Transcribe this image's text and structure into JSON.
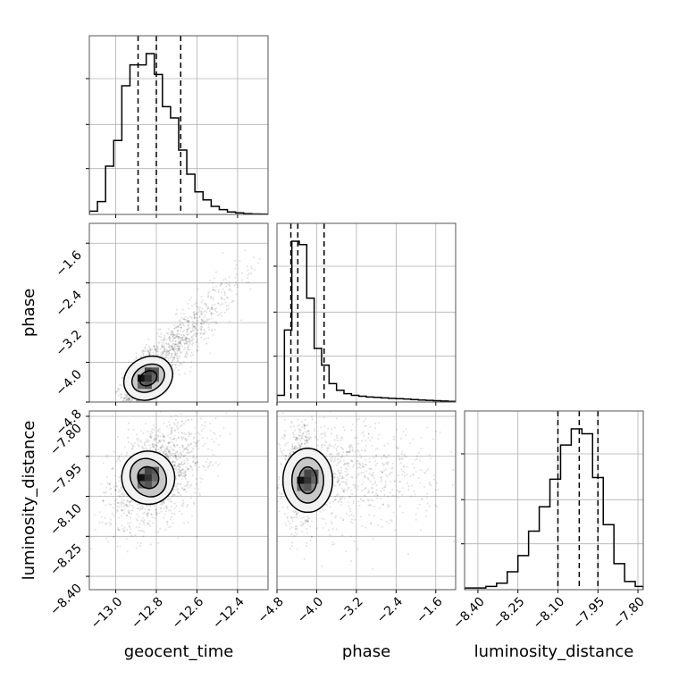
{
  "chart_data": {
    "type": "corner",
    "grid": true,
    "parameters": [
      "geocent_time",
      "phase",
      "luminosity_distance"
    ],
    "ranges": {
      "geocent_time": [
        -13.13,
        -12.25
      ],
      "phase": [
        -4.8,
        -1.2
      ],
      "luminosity_distance": [
        -8.45,
        -7.78
      ]
    },
    "ticks": {
      "geocent_time": [
        -13.0,
        -12.8,
        -12.6,
        -12.4
      ],
      "phase": [
        -4.8,
        -4.0,
        -3.2,
        -2.4,
        -1.6
      ],
      "luminosity_distance": [
        -8.4,
        -8.25,
        -8.1,
        -7.95,
        -7.8
      ]
    },
    "tick_labels": {
      "geocent_time": [
        "−13.0",
        "−12.8",
        "−12.6",
        "−12.4"
      ],
      "phase": [
        "−4.8",
        "−4.0",
        "−3.2",
        "−2.4",
        "−1.6"
      ],
      "luminosity_distance": [
        "−8.40",
        "−8.25",
        "−8.10",
        "−7.95",
        "−7.80"
      ]
    },
    "quantile_lines": {
      "geocent_time": [
        -12.89,
        -12.8,
        -12.68
      ],
      "phase": [
        -4.52,
        -4.38,
        -3.85
      ],
      "luminosity_distance": [
        -8.1,
        -8.02,
        -7.95
      ]
    },
    "histograms": {
      "geocent_time": {
        "edges": [
          -13.13,
          -13.09,
          -13.05,
          -13.01,
          -12.97,
          -12.93,
          -12.89,
          -12.85,
          -12.81,
          -12.77,
          -12.73,
          -12.69,
          -12.65,
          -12.61,
          -12.57,
          -12.53,
          -12.49,
          -12.45,
          -12.41,
          -12.37,
          -12.33,
          -12.29,
          -12.25
        ],
        "counts": [
          0.02,
          0.08,
          0.3,
          0.46,
          0.8,
          0.93,
          0.93,
          1.0,
          0.87,
          0.67,
          0.6,
          0.4,
          0.25,
          0.14,
          0.09,
          0.05,
          0.03,
          0.015,
          0.01,
          0.005,
          0.003,
          0.002
        ]
      },
      "phase": {
        "edges": [
          -4.8,
          -4.65,
          -4.5,
          -4.35,
          -4.2,
          -4.05,
          -3.9,
          -3.75,
          -3.6,
          -3.45,
          -3.3,
          -3.15,
          -3.0,
          -2.85,
          -2.7,
          -2.55,
          -2.4,
          -2.25,
          -2.1,
          -1.95,
          -1.8,
          -1.65,
          -1.5,
          -1.35,
          -1.2
        ],
        "counts": [
          0.04,
          0.43,
          0.96,
          0.94,
          0.62,
          0.32,
          0.22,
          0.11,
          0.07,
          0.05,
          0.04,
          0.035,
          0.03,
          0.028,
          0.025,
          0.022,
          0.02,
          0.018,
          0.015,
          0.012,
          0.01,
          0.008,
          0.006,
          0.004
        ]
      },
      "luminosity_distance": {
        "edges": [
          -8.45,
          -8.41,
          -8.37,
          -8.33,
          -8.29,
          -8.25,
          -8.21,
          -8.17,
          -8.13,
          -8.09,
          -8.05,
          -8.01,
          -7.97,
          -7.93,
          -7.89,
          -7.85,
          -7.81,
          -7.78
        ],
        "counts": [
          0.01,
          0.01,
          0.02,
          0.04,
          0.11,
          0.21,
          0.36,
          0.51,
          0.68,
          0.89,
          0.99,
          0.96,
          0.69,
          0.4,
          0.16,
          0.05,
          0.02
        ]
      }
    },
    "scatter": [
      {
        "x": "geocent_time",
        "y": "phase",
        "mean": [
          -12.78,
          -3.85
        ],
        "sd": [
          0.12,
          0.6
        ],
        "corr": 0.82,
        "n": 1600,
        "skew": 0.8
      },
      {
        "x": "geocent_time",
        "y": "luminosity_distance",
        "mean": [
          -12.8,
          -8.02
        ],
        "sd": [
          0.12,
          0.1
        ],
        "corr": 0.45,
        "n": 1400
      },
      {
        "x": "phase",
        "y": "luminosity_distance",
        "mean": [
          -4.15,
          -8.02
        ],
        "sd": [
          0.6,
          0.1
        ],
        "corr": 0.0,
        "n": 1400,
        "skew": 0.9
      }
    ],
    "contours": [
      {
        "x": "geocent_time",
        "y": "phase",
        "center": [
          -12.84,
          -4.32
        ],
        "sx": [
          0.045,
          0.085,
          0.125
        ],
        "sy": [
          0.14,
          0.26,
          0.42
        ],
        "rot_deg": 30
      },
      {
        "x": "geocent_time",
        "y": "luminosity_distance",
        "center": [
          -12.84,
          -8.03
        ],
        "sx": [
          0.05,
          0.085,
          0.13
        ],
        "sy": [
          0.042,
          0.075,
          0.1
        ],
        "rot_deg": 35
      },
      {
        "x": "phase",
        "y": "luminosity_distance",
        "center": [
          -4.18,
          -8.04
        ],
        "sx": [
          0.18,
          0.32,
          0.5
        ],
        "sy": [
          0.05,
          0.085,
          0.12
        ],
        "rot_deg": 0
      }
    ]
  }
}
